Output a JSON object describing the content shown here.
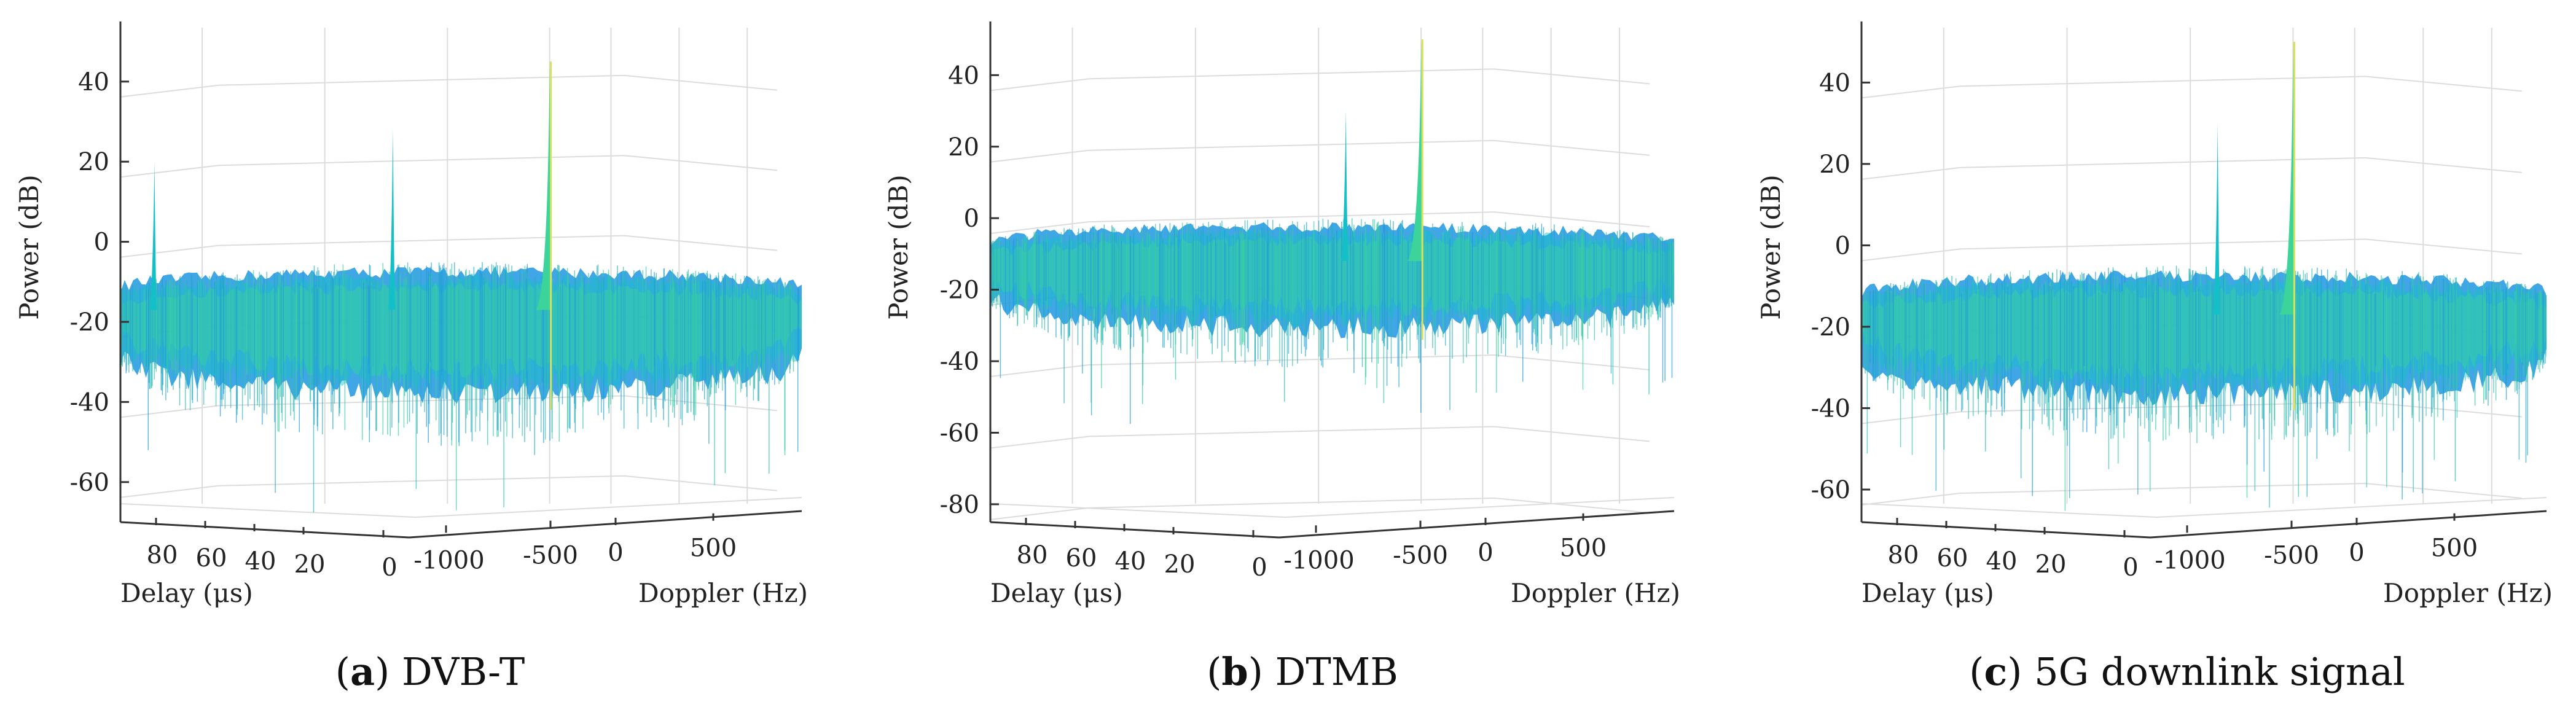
{
  "chart_data": [
    {
      "type": "surface",
      "id": "a",
      "caption_letter": "a",
      "caption_text": "DVB-T",
      "zlabel": "Power (dB)",
      "xlabel": "Delay (μs)",
      "ylabel": "Doppler (Hz)",
      "zlim": [
        -70,
        55
      ],
      "zticks": [
        "40",
        "20",
        "0",
        "-20",
        "-40",
        "-60"
      ],
      "delay_ticks": [
        "80",
        "60",
        "40",
        "20",
        "0"
      ],
      "doppler_ticks": [
        "-1000",
        "-500",
        "0",
        "500"
      ],
      "noise_floor_db": -15,
      "noise_spread_db": 18,
      "peaks_db": [
        20,
        28,
        45
      ]
    },
    {
      "type": "surface",
      "id": "b",
      "caption_letter": "b",
      "caption_text": "DTMB",
      "zlabel": "Power (dB)",
      "xlabel": "Delay (μs)",
      "ylabel": "Doppler (Hz)",
      "zlim": [
        -85,
        55
      ],
      "zticks": [
        "40",
        "20",
        "0",
        "-20",
        "-40",
        "-60",
        "-80"
      ],
      "delay_ticks": [
        "80",
        "60",
        "40",
        "20",
        "0"
      ],
      "doppler_ticks": [
        "-1000",
        "-500",
        "0",
        "500"
      ],
      "noise_floor_db": -10,
      "noise_spread_db": 16,
      "peaks_db": [
        30,
        50
      ]
    },
    {
      "type": "surface",
      "id": "c",
      "caption_letter": "c",
      "caption_text": "5G downlink signal",
      "zlabel": "Power (dB)",
      "xlabel": "Delay (μs)",
      "ylabel": "Doppler (Hz)",
      "zlim": [
        -68,
        55
      ],
      "zticks": [
        "40",
        "20",
        "0",
        "-20",
        "-40",
        "-60"
      ],
      "delay_ticks": [
        "80",
        "60",
        "40",
        "20",
        "0"
      ],
      "doppler_ticks": [
        "-1000",
        "-500",
        "0",
        "500"
      ],
      "noise_floor_db": -15,
      "noise_spread_db": 17,
      "peaks_db": [
        30,
        50
      ]
    }
  ],
  "colors": {
    "surface_low": "#1f96e0",
    "surface_mid": "#14c0c8",
    "surface_high": "#3cd49a",
    "peak": "#d8e060"
  }
}
